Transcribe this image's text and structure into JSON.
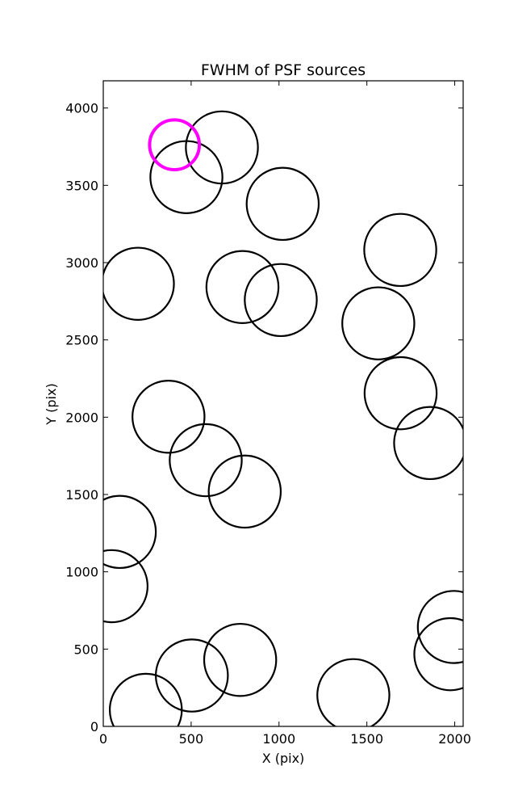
{
  "chart_data": {
    "type": "scatter",
    "title": "FWHM of PSF sources",
    "xlabel": "X (pix)",
    "ylabel": "Y (pix)",
    "xlim": [
      0,
      2048
    ],
    "ylim": [
      0,
      4176
    ],
    "xticks": [
      0,
      500,
      1000,
      1500,
      2000
    ],
    "yticks": [
      0,
      500,
      1000,
      1500,
      2000,
      2500,
      3000,
      3500,
      4000
    ],
    "grid": false,
    "marker": "open circle",
    "marker_radius_pix": 205,
    "colors": {
      "default": "#000000",
      "highlight": "#ff00ff"
    },
    "points": [
      {
        "x": 675,
        "y": 3745
      },
      {
        "x": 473,
        "y": 3553
      },
      {
        "x": 405,
        "y": 3762,
        "highlight": true
      },
      {
        "x": 1021,
        "y": 3380
      },
      {
        "x": 1690,
        "y": 3082
      },
      {
        "x": 197,
        "y": 2863
      },
      {
        "x": 792,
        "y": 2842
      },
      {
        "x": 1010,
        "y": 2758
      },
      {
        "x": 1565,
        "y": 2607
      },
      {
        "x": 1692,
        "y": 2155
      },
      {
        "x": 1860,
        "y": 1833
      },
      {
        "x": 371,
        "y": 2003
      },
      {
        "x": 583,
        "y": 1722
      },
      {
        "x": 805,
        "y": 1519
      },
      {
        "x": 94,
        "y": 1258
      },
      {
        "x": 47,
        "y": 907
      },
      {
        "x": 1995,
        "y": 643
      },
      {
        "x": 1975,
        "y": 467
      },
      {
        "x": 779,
        "y": 430
      },
      {
        "x": 504,
        "y": 329
      },
      {
        "x": 1423,
        "y": 202
      },
      {
        "x": 242,
        "y": 107
      }
    ]
  }
}
